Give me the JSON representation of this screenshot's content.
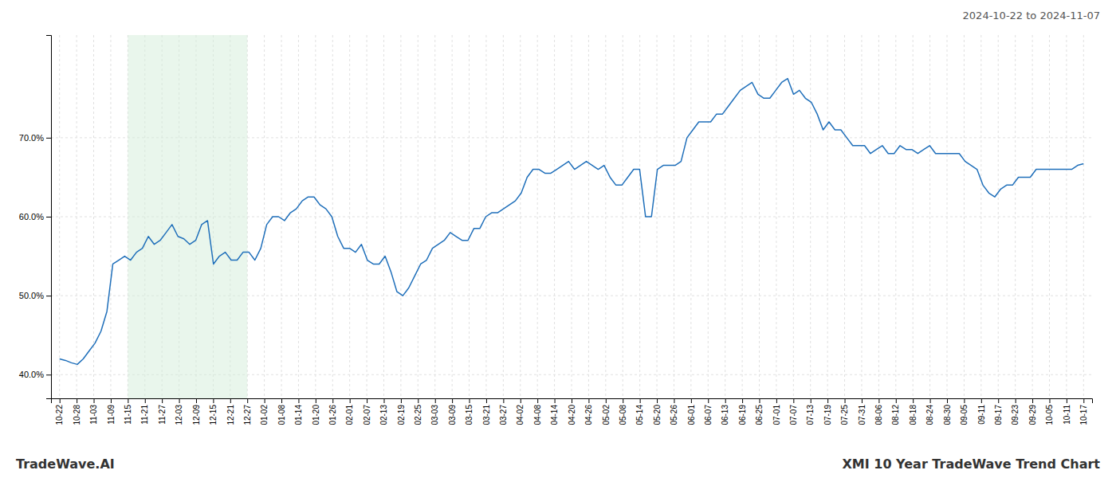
{
  "chart_data": {
    "type": "line",
    "title": "XMI 10 Year TradeWave Trend Chart",
    "subtitle": "2024-10-22 to 2024-11-07",
    "annotations": [
      "TradeWave.AI"
    ],
    "color": "#1f6fba",
    "highlight": [
      4,
      11
    ],
    "highlight_color": "#d4edda",
    "grid": true,
    "xlim": [
      -0.5,
      60.5
    ],
    "xticks": [
      {
        "value": 0,
        "label": "10-22"
      },
      {
        "value": 1,
        "label": "10-28"
      },
      {
        "value": 2,
        "label": "11-03"
      },
      {
        "value": 3,
        "label": "11-09"
      },
      {
        "value": 4,
        "label": "11-15"
      },
      {
        "value": 5,
        "label": "11-21"
      },
      {
        "value": 6,
        "label": "11-27"
      },
      {
        "value": 7,
        "label": "12-03"
      },
      {
        "value": 8,
        "label": "12-09"
      },
      {
        "value": 9,
        "label": "12-15"
      },
      {
        "value": 10,
        "label": "12-21"
      },
      {
        "value": 11,
        "label": "12-27"
      },
      {
        "value": 12,
        "label": "01-02"
      },
      {
        "value": 13,
        "label": "01-08"
      },
      {
        "value": 14,
        "label": "01-14"
      },
      {
        "value": 15,
        "label": "01-20"
      },
      {
        "value": 16,
        "label": "01-26"
      },
      {
        "value": 17,
        "label": "02-01"
      },
      {
        "value": 18,
        "label": "02-07"
      },
      {
        "value": 19,
        "label": "02-13"
      },
      {
        "value": 20,
        "label": "02-19"
      },
      {
        "value": 21,
        "label": "02-25"
      },
      {
        "value": 22,
        "label": "03-03"
      },
      {
        "value": 23,
        "label": "03-09"
      },
      {
        "value": 24,
        "label": "03-15"
      },
      {
        "value": 25,
        "label": "03-21"
      },
      {
        "value": 26,
        "label": "03-27"
      },
      {
        "value": 27,
        "label": "04-02"
      },
      {
        "value": 28,
        "label": "04-08"
      },
      {
        "value": 29,
        "label": "04-14"
      },
      {
        "value": 30,
        "label": "04-20"
      },
      {
        "value": 31,
        "label": "04-26"
      },
      {
        "value": 32,
        "label": "05-02"
      },
      {
        "value": 33,
        "label": "05-08"
      },
      {
        "value": 34,
        "label": "05-14"
      },
      {
        "value": 35,
        "label": "05-20"
      },
      {
        "value": 36,
        "label": "05-26"
      },
      {
        "value": 37,
        "label": "06-01"
      },
      {
        "value": 38,
        "label": "06-07"
      },
      {
        "value": 39,
        "label": "06-13"
      },
      {
        "value": 40,
        "label": "06-19"
      },
      {
        "value": 41,
        "label": "06-25"
      },
      {
        "value": 42,
        "label": "07-01"
      },
      {
        "value": 43,
        "label": "07-07"
      },
      {
        "value": 44,
        "label": "07-13"
      },
      {
        "value": 45,
        "label": "07-19"
      },
      {
        "value": 46,
        "label": "07-25"
      },
      {
        "value": 47,
        "label": "07-31"
      },
      {
        "value": 48,
        "label": "08-06"
      },
      {
        "value": 49,
        "label": "08-12"
      },
      {
        "value": 50,
        "label": "08-18"
      },
      {
        "value": 51,
        "label": "08-24"
      },
      {
        "value": 52,
        "label": "08-30"
      },
      {
        "value": 53,
        "label": "09-05"
      },
      {
        "value": 54,
        "label": "09-11"
      },
      {
        "value": 55,
        "label": "09-17"
      },
      {
        "value": 56,
        "label": "09-23"
      },
      {
        "value": 57,
        "label": "09-29"
      },
      {
        "value": 58,
        "label": "10-05"
      },
      {
        "value": 59,
        "label": "10-11"
      },
      {
        "value": 60,
        "label": "10-17"
      }
    ],
    "ylim": [
      0.37,
      0.83
    ],
    "yticks": [
      {
        "value": 0.4,
        "label": "40.0%"
      },
      {
        "value": 0.5,
        "label": "50.0%"
      },
      {
        "value": 0.6,
        "label": "60.0%"
      },
      {
        "value": 0.7,
        "label": "70.0%"
      }
    ],
    "values": [
      0.42,
      0.418,
      0.415,
      0.413,
      0.42,
      0.43,
      0.44,
      0.455,
      0.48,
      0.54,
      0.545,
      0.55,
      0.545,
      0.555,
      0.56,
      0.575,
      0.565,
      0.57,
      0.58,
      0.59,
      0.575,
      0.572,
      0.565,
      0.57,
      0.59,
      0.595,
      0.54,
      0.55,
      0.555,
      0.545,
      0.545,
      0.555,
      0.555,
      0.545,
      0.56,
      0.59,
      0.6,
      0.6,
      0.595,
      0.605,
      0.61,
      0.62,
      0.625,
      0.625,
      0.615,
      0.61,
      0.6,
      0.575,
      0.56,
      0.56,
      0.555,
      0.565,
      0.545,
      0.54,
      0.54,
      0.55,
      0.53,
      0.505,
      0.5,
      0.51,
      0.525,
      0.54,
      0.545,
      0.56,
      0.565,
      0.57,
      0.58,
      0.575,
      0.57,
      0.57,
      0.585,
      0.585,
      0.6,
      0.605,
      0.605,
      0.61,
      0.615,
      0.62,
      0.63,
      0.65,
      0.66,
      0.66,
      0.655,
      0.655,
      0.66,
      0.665,
      0.67,
      0.66,
      0.665,
      0.67,
      0.665,
      0.66,
      0.665,
      0.65,
      0.64,
      0.64,
      0.65,
      0.66,
      0.66,
      0.6,
      0.6,
      0.66,
      0.665,
      0.665,
      0.665,
      0.67,
      0.7,
      0.71,
      0.72,
      0.72,
      0.72,
      0.73,
      0.73,
      0.74,
      0.75,
      0.76,
      0.765,
      0.77,
      0.755,
      0.75,
      0.75,
      0.76,
      0.77,
      0.775,
      0.755,
      0.76,
      0.75,
      0.745,
      0.73,
      0.71,
      0.72,
      0.71,
      0.71,
      0.7,
      0.69,
      0.69,
      0.69,
      0.68,
      0.685,
      0.69,
      0.68,
      0.68,
      0.69,
      0.685,
      0.685,
      0.68,
      0.685,
      0.69,
      0.68,
      0.68,
      0.68,
      0.68,
      0.68,
      0.67,
      0.665,
      0.66,
      0.64,
      0.63,
      0.625,
      0.635,
      0.64,
      0.64,
      0.65,
      0.65,
      0.65,
      0.66,
      0.66,
      0.66,
      0.66,
      0.66,
      0.66,
      0.66,
      0.665,
      0.667
    ]
  }
}
